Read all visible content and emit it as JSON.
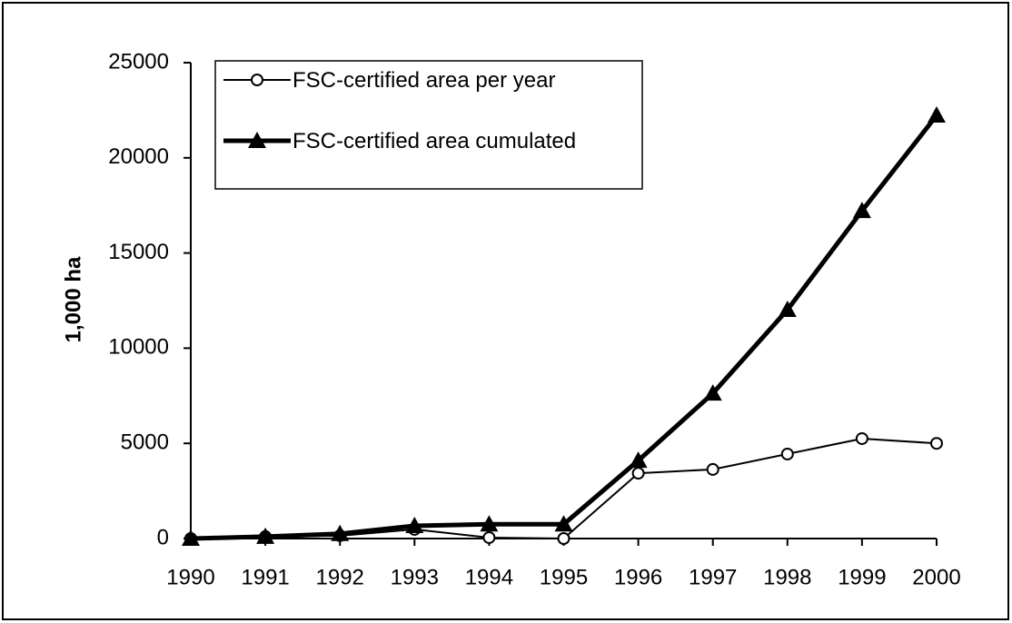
{
  "chart_data": {
    "type": "line",
    "y_label": "1,000 ha",
    "categories": [
      "1990",
      "1991",
      "1992",
      "1993",
      "1994",
      "1995",
      "1996",
      "1997",
      "1998",
      "1999",
      "2000"
    ],
    "series": [
      {
        "name": "FSC-certified area per year",
        "color": "#000000",
        "marker": "circle",
        "values": [
          0,
          100,
          150,
          480,
          50,
          0,
          3430,
          3630,
          4440,
          5250,
          5000
        ]
      },
      {
        "name": "FSC-certified area cumulated",
        "color": "#000000",
        "marker": "triangle",
        "values": [
          0,
          100,
          250,
          670,
          750,
          750,
          4100,
          7630,
          12020,
          17220,
          22230
        ]
      }
    ],
    "ylim": [
      0,
      25000
    ],
    "yticks": [
      0,
      5000,
      10000,
      15000,
      20000,
      25000
    ],
    "grid": false,
    "legend": "top-left"
  }
}
